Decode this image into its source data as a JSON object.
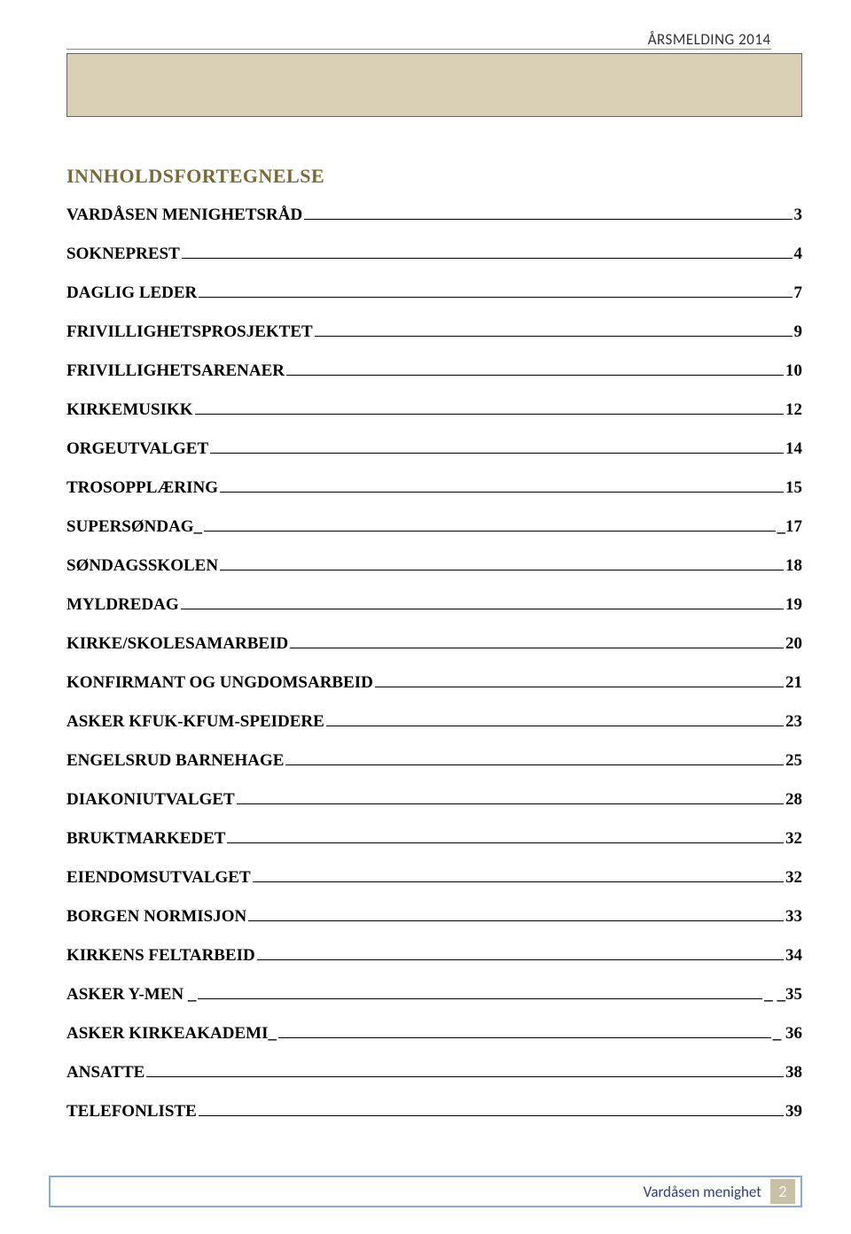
{
  "header": {
    "title": "ÅRSMELDING 2014"
  },
  "toc": {
    "title": "INNHOLDSFORTEGNELSE",
    "title_color": "#7a6a3a",
    "entries": [
      {
        "label": "VARDÅSEN MENIGHETSRÅD",
        "page": "3"
      },
      {
        "label": "SOKNEPREST",
        "page": "4"
      },
      {
        "label": "DAGLIG LEDER",
        "page": "7"
      },
      {
        "label": "FRIVILLIGHETSPROSJEKTET",
        "page": "9"
      },
      {
        "label": "FRIVILLIGHETSARENAER",
        "page": "10"
      },
      {
        "label": "KIRKEMUSIKK",
        "page": "12"
      },
      {
        "label": "ORGEUTVALGET",
        "page": "14"
      },
      {
        "label": "TROSOPPLÆRING",
        "page": "15"
      },
      {
        "label": "SUPERSØNDAG_",
        "page": "_17"
      },
      {
        "label": "SØNDAGSSKOLEN",
        "page": "18"
      },
      {
        "label": "MYLDREDAG",
        "page": "19"
      },
      {
        "label": "KIRKE/SKOLESAMARBEID",
        "page": "20"
      },
      {
        "label": "KONFIRMANT OG UNGDOMSARBEID",
        "page": "21"
      },
      {
        "label": "ASKER KFUK-KFUM-SPEIDERE",
        "page": "23"
      },
      {
        "label": "ENGELSRUD BARNEHAGE",
        "page": "25"
      },
      {
        "label": "DIAKONIUTVALGET",
        "page": "28"
      },
      {
        "label": "BRUKTMARKEDET",
        "page": "32"
      },
      {
        "label": "EIENDOMSUTVALGET",
        "page": "32"
      },
      {
        "label": "BORGEN NORMISJON",
        "page": "33"
      },
      {
        "label": "KIRKENS FELTARBEID",
        "page": "34"
      },
      {
        "label": "ASKER Y-MEN _",
        "page": "_ _35"
      },
      {
        "label": "ASKER KIRKEAKADEMI_",
        "page": "_ 36"
      },
      {
        "label": "ANSATTE",
        "page": "38"
      },
      {
        "label": "TELEFONLISTE",
        "page": "39"
      }
    ]
  },
  "footer": {
    "text": "Vardåsen menighet",
    "page_number": "2",
    "border_color": "#8ca9d6",
    "pagebox_bg": "#c9c1a6"
  },
  "colors": {
    "tan_box_bg": "#dad0b6",
    "tan_box_border": "#666666",
    "page_bg": "#ffffff",
    "text": "#000000"
  }
}
